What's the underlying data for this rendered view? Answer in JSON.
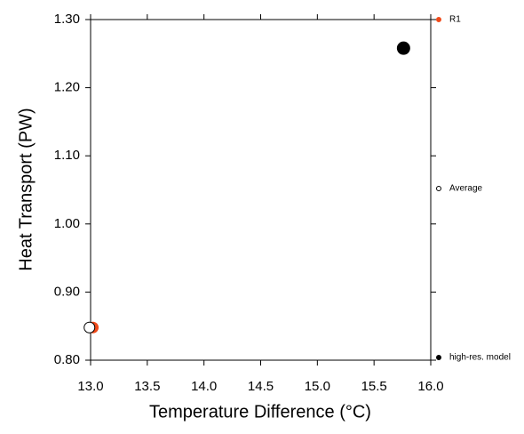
{
  "chart_data": {
    "type": "scatter",
    "xlabel": "Temperature Difference (°C)",
    "ylabel": "Heat Transport (PW)",
    "xlim": [
      13.0,
      16.0
    ],
    "xticks": [
      {
        "value": 13.0,
        "label": "13.0"
      },
      {
        "value": 13.5,
        "label": "13.5"
      },
      {
        "value": 14.0,
        "label": "14.0"
      },
      {
        "value": 14.5,
        "label": "14.5"
      },
      {
        "value": 15.0,
        "label": "15.0"
      },
      {
        "value": 15.5,
        "label": "15.5"
      },
      {
        "value": 16.0,
        "label": "16.0"
      }
    ],
    "ylim": [
      0.8,
      1.3
    ],
    "yticks": [
      {
        "value": 0.8,
        "label": "0.80"
      },
      {
        "value": 0.9,
        "label": "0.90"
      },
      {
        "value": 1.0,
        "label": "1.00"
      },
      {
        "value": 1.1,
        "label": "1.10"
      },
      {
        "value": 1.2,
        "label": "1.20"
      },
      {
        "value": 1.3,
        "label": "1.30"
      }
    ],
    "series": [
      {
        "name": "R1",
        "color": "#f04a1a",
        "filled": true,
        "x": [
          13.02
        ],
        "values": [
          0.848
        ]
      },
      {
        "name": "Average",
        "color": "#000000",
        "filled": false,
        "x": [
          12.99
        ],
        "values": [
          0.848
        ]
      },
      {
        "name": "high-res. model",
        "color": "#000000",
        "filled": true,
        "x": [
          15.76
        ],
        "values": [
          1.258
        ]
      }
    ]
  }
}
